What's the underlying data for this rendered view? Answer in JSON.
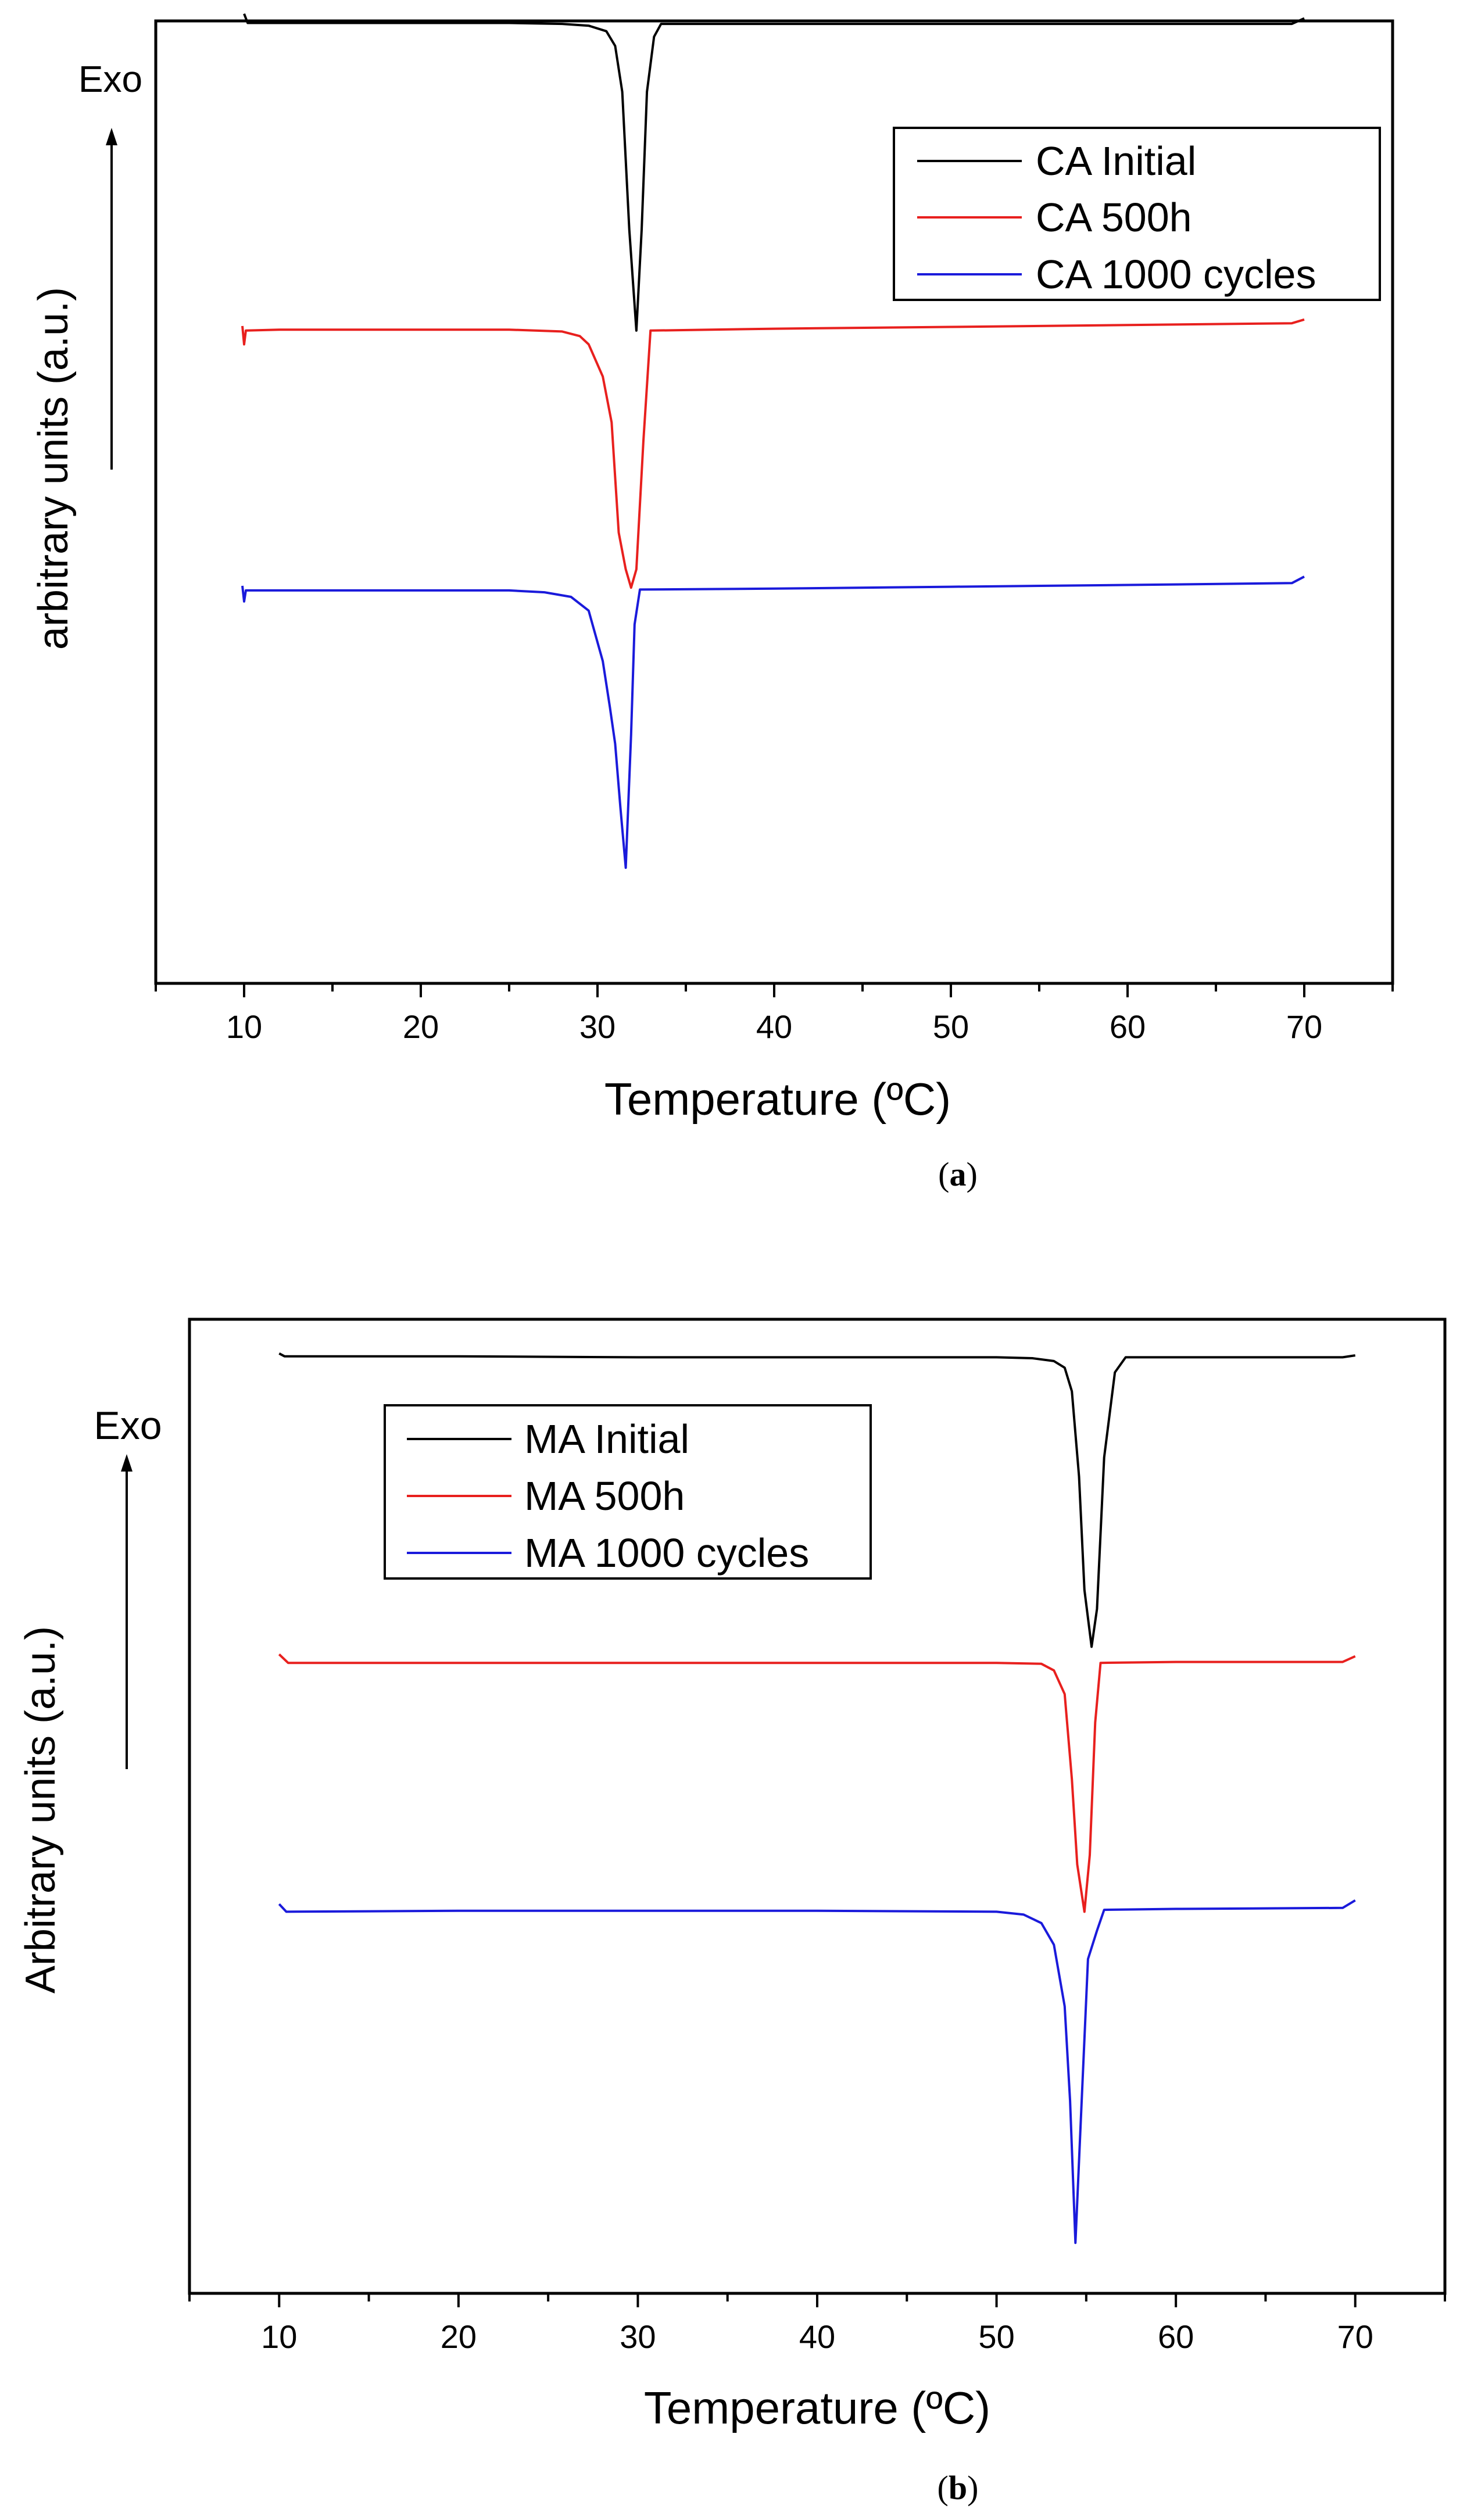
{
  "chart_data": [
    {
      "type": "line",
      "panel_label": "a",
      "xlabel": "Temperature (ºC)",
      "ylabel": "arbitrary units (a.u.)",
      "direction_label": "Exo",
      "xlim": [
        5,
        75
      ],
      "ylim": [
        0,
        1
      ],
      "xticks": [
        10,
        20,
        30,
        40,
        50,
        60,
        70
      ],
      "legend_position": "top-right",
      "y_ticks_shown": false,
      "series": [
        {
          "name": "CA Initial",
          "color": "#000000",
          "points": [
            [
              10.0,
              0.985
            ],
            [
              10.2,
              0.975
            ],
            [
              12,
              0.975
            ],
            [
              20,
              0.975
            ],
            [
              25,
              0.975
            ],
            [
              28,
              0.974
            ],
            [
              29.5,
              0.972
            ],
            [
              30.5,
              0.966
            ],
            [
              31.0,
              0.95
            ],
            [
              31.4,
              0.9
            ],
            [
              31.8,
              0.75
            ],
            [
              32.2,
              0.64
            ],
            [
              32.5,
              0.75
            ],
            [
              32.8,
              0.9
            ],
            [
              33.2,
              0.96
            ],
            [
              33.6,
              0.974
            ],
            [
              40,
              0.974
            ],
            [
              50,
              0.974
            ],
            [
              60,
              0.974
            ],
            [
              69.3,
              0.974
            ],
            [
              70,
              0.98
            ]
          ]
        },
        {
          "name": "CA 500h",
          "color": "#e8201e",
          "points": [
            [
              9.9,
              0.645
            ],
            [
              10.0,
              0.625
            ],
            [
              10.1,
              0.64
            ],
            [
              12,
              0.641
            ],
            [
              20,
              0.641
            ],
            [
              25,
              0.641
            ],
            [
              28,
              0.639
            ],
            [
              29,
              0.634
            ],
            [
              29.5,
              0.625
            ],
            [
              30.3,
              0.59
            ],
            [
              30.8,
              0.54
            ],
            [
              31.2,
              0.42
            ],
            [
              31.6,
              0.38
            ],
            [
              31.9,
              0.36
            ],
            [
              32.2,
              0.38
            ],
            [
              32.6,
              0.52
            ],
            [
              33.0,
              0.64
            ],
            [
              40,
              0.642
            ],
            [
              50,
              0.644
            ],
            [
              60,
              0.646
            ],
            [
              69.3,
              0.648
            ],
            [
              70,
              0.652
            ]
          ]
        },
        {
          "name": "CA 1000 cycles",
          "color": "#1a1adb",
          "points": [
            [
              9.9,
              0.362
            ],
            [
              10.0,
              0.345
            ],
            [
              10.1,
              0.357
            ],
            [
              12,
              0.357
            ],
            [
              20,
              0.357
            ],
            [
              25,
              0.357
            ],
            [
              27,
              0.355
            ],
            [
              28.5,
              0.35
            ],
            [
              29.5,
              0.335
            ],
            [
              30.3,
              0.28
            ],
            [
              30.7,
              0.23
            ],
            [
              31.0,
              0.19
            ],
            [
              31.3,
              0.12
            ],
            [
              31.6,
              0.055
            ],
            [
              31.9,
              0.2
            ],
            [
              32.1,
              0.32
            ],
            [
              32.4,
              0.358
            ],
            [
              40,
              0.359
            ],
            [
              50,
              0.361
            ],
            [
              60,
              0.363
            ],
            [
              69.3,
              0.365
            ],
            [
              70,
              0.372
            ]
          ]
        }
      ]
    },
    {
      "type": "line",
      "panel_label": "b",
      "xlabel": "Temperature (ºC)",
      "ylabel": "Arbitrary units (a.u.)",
      "direction_label": "Exo",
      "xlim": [
        5,
        75
      ],
      "ylim": [
        0,
        1
      ],
      "xticks": [
        10,
        20,
        30,
        40,
        50,
        60,
        70
      ],
      "legend_position": "top-left",
      "y_ticks_shown": false,
      "series": [
        {
          "name": "MA Initial",
          "color": "#000000",
          "points": [
            [
              10.0,
              0.97
            ],
            [
              10.3,
              0.967
            ],
            [
              20,
              0.967
            ],
            [
              30,
              0.966
            ],
            [
              40,
              0.966
            ],
            [
              50,
              0.966
            ],
            [
              52,
              0.965
            ],
            [
              53.2,
              0.962
            ],
            [
              53.8,
              0.955
            ],
            [
              54.2,
              0.93
            ],
            [
              54.6,
              0.84
            ],
            [
              54.9,
              0.72
            ],
            [
              55.3,
              0.66
            ],
            [
              55.6,
              0.7
            ],
            [
              56.0,
              0.86
            ],
            [
              56.6,
              0.95
            ],
            [
              57.2,
              0.966
            ],
            [
              60,
              0.966
            ],
            [
              69.3,
              0.966
            ],
            [
              70,
              0.968
            ]
          ]
        },
        {
          "name": "MA 500h",
          "color": "#e8201e",
          "points": [
            [
              10.0,
              0.652
            ],
            [
              10.5,
              0.643
            ],
            [
              20,
              0.643
            ],
            [
              30,
              0.643
            ],
            [
              40,
              0.643
            ],
            [
              50,
              0.643
            ],
            [
              52.5,
              0.642
            ],
            [
              53.2,
              0.635
            ],
            [
              53.8,
              0.61
            ],
            [
              54.2,
              0.52
            ],
            [
              54.5,
              0.43
            ],
            [
              54.9,
              0.38
            ],
            [
              55.2,
              0.44
            ],
            [
              55.5,
              0.58
            ],
            [
              55.8,
              0.643
            ],
            [
              60,
              0.644
            ],
            [
              69.3,
              0.644
            ],
            [
              70,
              0.65
            ]
          ]
        },
        {
          "name": "MA 1000 cycles",
          "color": "#1a1adb",
          "points": [
            [
              10.0,
              0.388
            ],
            [
              10.4,
              0.38
            ],
            [
              20,
              0.381
            ],
            [
              30,
              0.381
            ],
            [
              40,
              0.381
            ],
            [
              50,
              0.38
            ],
            [
              51.5,
              0.377
            ],
            [
              52.5,
              0.368
            ],
            [
              53.2,
              0.345
            ],
            [
              53.8,
              0.28
            ],
            [
              54.1,
              0.18
            ],
            [
              54.4,
              0.03
            ],
            [
              54.7,
              0.16
            ],
            [
              55.1,
              0.33
            ],
            [
              55.6,
              0.36
            ],
            [
              56.0,
              0.382
            ],
            [
              60,
              0.383
            ],
            [
              69.3,
              0.384
            ],
            [
              70,
              0.392
            ]
          ]
        }
      ]
    }
  ]
}
